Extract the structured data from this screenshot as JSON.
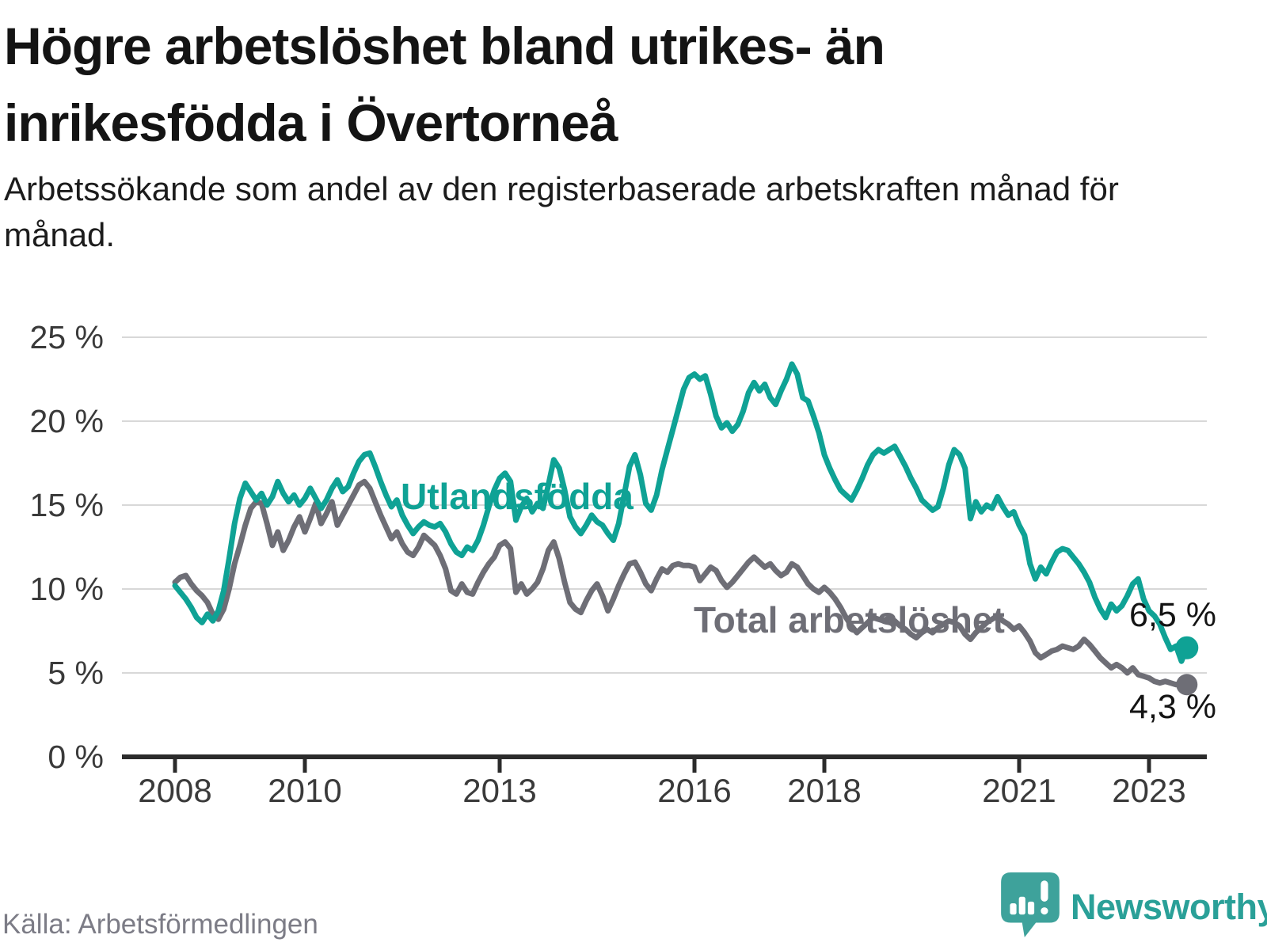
{
  "header": {
    "title_line1": "Högre arbetslöshet bland utrikes- än",
    "title_line2": "inrikesfödda i Övertorneå",
    "subtitle": "Arbetssökande som andel av den registerbaserade arbetskraften månad för månad."
  },
  "annotations": {
    "series1_label": "Utlandsfödda",
    "series2_label": "Total arbetslöshet",
    "series1_end_value": "6,5 %",
    "series2_end_value": "4,3 %"
  },
  "footer": {
    "source": "Källa: Arbetsförmedlingen",
    "brand": "Newsworthy"
  },
  "chart_data": {
    "type": "line",
    "title": "Högre arbetslöshet bland utrikes- än inrikesfödda i Övertorneå",
    "subtitle": "Arbetssökande som andel av den registerbaserade arbetskraften månad för månad.",
    "frequency": "monthly",
    "x_start": "2008-01",
    "x_end": "2023-08",
    "xlabel": "",
    "ylabel": "",
    "ylim": [
      0,
      25
    ],
    "grid": true,
    "legend_position": "inline",
    "style": {
      "grid_color": "#d8d8d8",
      "axis_color": "#2b2b2b",
      "axis_text_color": "#3a3a3a",
      "background": "#ffffff"
    },
    "y_axis": {
      "ticks": [
        {
          "value": 0,
          "label": "0 %"
        },
        {
          "value": 5,
          "label": "5 %"
        },
        {
          "value": 10,
          "label": "10 %"
        },
        {
          "value": 15,
          "label": "15 %"
        },
        {
          "value": 20,
          "label": "20 %"
        },
        {
          "value": 25,
          "label": "25 %"
        }
      ]
    },
    "x_axis": {
      "ticks": [
        {
          "year": 2008,
          "label": "2008"
        },
        {
          "year": 2010,
          "label": "2010"
        },
        {
          "year": 2013,
          "label": "2013"
        },
        {
          "year": 2016,
          "label": "2016"
        },
        {
          "year": 2018,
          "label": "2018"
        },
        {
          "year": 2021,
          "label": "2021"
        },
        {
          "year": 2023,
          "label": "2023"
        }
      ]
    },
    "series": [
      {
        "name": "Utlandsfödda",
        "color": "#0fa295",
        "end_label": "6,5 %",
        "end_value": 6.5,
        "dot_radius": 14.5,
        "values": [
          10.2,
          9.8,
          9.4,
          8.9,
          8.3,
          8.0,
          8.5,
          8.1,
          8.7,
          9.9,
          11.8,
          13.9,
          15.4,
          16.3,
          15.8,
          15.3,
          15.7,
          15.0,
          15.5,
          16.4,
          15.7,
          15.2,
          15.6,
          15.0,
          15.4,
          16.0,
          15.4,
          14.8,
          15.3,
          16.0,
          16.5,
          15.8,
          16.1,
          16.9,
          17.6,
          18.0,
          18.1,
          17.3,
          16.4,
          15.6,
          14.9,
          15.3,
          14.4,
          13.8,
          13.3,
          13.7,
          14.0,
          13.8,
          13.7,
          13.9,
          13.4,
          12.7,
          12.2,
          12.0,
          12.5,
          12.3,
          12.9,
          13.8,
          14.9,
          15.9,
          16.6,
          16.9,
          16.4,
          14.1,
          14.9,
          15.4,
          14.6,
          15.1,
          14.8,
          16.2,
          17.7,
          17.2,
          15.9,
          14.3,
          13.7,
          13.3,
          13.8,
          14.4,
          14.0,
          13.8,
          13.3,
          12.9,
          13.9,
          15.6,
          17.3,
          18.0,
          16.8,
          15.1,
          14.7,
          15.6,
          17.1,
          18.3,
          19.5,
          20.7,
          21.9,
          22.6,
          22.8,
          22.5,
          22.7,
          21.6,
          20.3,
          19.6,
          19.9,
          19.4,
          19.8,
          20.6,
          21.7,
          22.3,
          21.8,
          22.2,
          21.4,
          21.0,
          21.8,
          22.5,
          23.4,
          22.8,
          21.4,
          21.2,
          20.3,
          19.3,
          18.0,
          17.2,
          16.5,
          15.9,
          15.6,
          15.3,
          15.9,
          16.6,
          17.4,
          18.0,
          18.3,
          18.1,
          18.3,
          18.5,
          17.9,
          17.3,
          16.6,
          16.0,
          15.3,
          15.0,
          14.7,
          14.9,
          16.0,
          17.4,
          18.3,
          18.0,
          17.2,
          14.2,
          15.2,
          14.6,
          15.0,
          14.8,
          15.5,
          14.9,
          14.4,
          14.6,
          13.8,
          13.2,
          11.5,
          10.6,
          11.3,
          10.9,
          11.6,
          12.2,
          12.4,
          12.3,
          11.9,
          11.5,
          11.0,
          10.4,
          9.5,
          8.8,
          8.3,
          9.1,
          8.7,
          9.0,
          9.6,
          10.3,
          10.6,
          9.4,
          8.7,
          8.4,
          7.9,
          7.1,
          6.4,
          6.6,
          5.7,
          6.5
        ]
      },
      {
        "name": "Total arbetslöshet",
        "color": "#6e6e76",
        "end_label": "4,3 %",
        "end_value": 4.3,
        "dot_radius": 13.5,
        "values": [
          10.4,
          10.7,
          10.8,
          10.3,
          9.9,
          9.6,
          9.2,
          8.5,
          8.2,
          8.8,
          10.0,
          11.5,
          12.6,
          13.8,
          14.8,
          15.2,
          15.1,
          13.9,
          12.6,
          13.4,
          12.3,
          12.9,
          13.7,
          14.3,
          13.4,
          14.2,
          15.1,
          13.9,
          14.5,
          15.2,
          13.8,
          14.4,
          15.0,
          15.6,
          16.2,
          16.4,
          16.0,
          15.2,
          14.4,
          13.7,
          13.0,
          13.4,
          12.7,
          12.2,
          12.0,
          12.5,
          13.2,
          12.9,
          12.6,
          12.0,
          11.2,
          9.9,
          9.7,
          10.3,
          9.8,
          9.7,
          10.4,
          11.0,
          11.5,
          11.9,
          12.6,
          12.8,
          12.4,
          9.8,
          10.3,
          9.7,
          10.0,
          10.4,
          11.2,
          12.3,
          12.8,
          11.8,
          10.4,
          9.2,
          8.8,
          8.6,
          9.3,
          9.9,
          10.3,
          9.6,
          8.7,
          9.4,
          10.2,
          10.9,
          11.5,
          11.6,
          11.0,
          10.3,
          9.9,
          10.6,
          11.2,
          11.0,
          11.4,
          11.5,
          11.4,
          11.4,
          11.3,
          10.5,
          10.9,
          11.3,
          11.1,
          10.5,
          10.1,
          10.4,
          10.8,
          11.2,
          11.6,
          11.9,
          11.6,
          11.3,
          11.5,
          11.1,
          10.8,
          11.0,
          11.5,
          11.3,
          10.8,
          10.3,
          10.0,
          9.8,
          10.1,
          9.8,
          9.4,
          8.9,
          8.3,
          7.8,
          7.4,
          7.7,
          8.0,
          8.3,
          8.2,
          8.1,
          8.3,
          8.1,
          7.8,
          7.6,
          7.3,
          7.1,
          7.4,
          7.6,
          7.4,
          7.7,
          7.9,
          8.1,
          8.0,
          7.8,
          7.3,
          7.0,
          7.4,
          7.7,
          8.0,
          8.2,
          8.4,
          8.1,
          7.9,
          7.6,
          7.8,
          7.4,
          6.9,
          6.2,
          5.9,
          6.1,
          6.3,
          6.4,
          6.6,
          6.5,
          6.4,
          6.6,
          7.0,
          6.7,
          6.3,
          5.9,
          5.6,
          5.3,
          5.5,
          5.3,
          5.0,
          5.3,
          4.9,
          4.8,
          4.7,
          4.5,
          4.4,
          4.5,
          4.4,
          4.3,
          4.4,
          4.3
        ]
      }
    ]
  }
}
